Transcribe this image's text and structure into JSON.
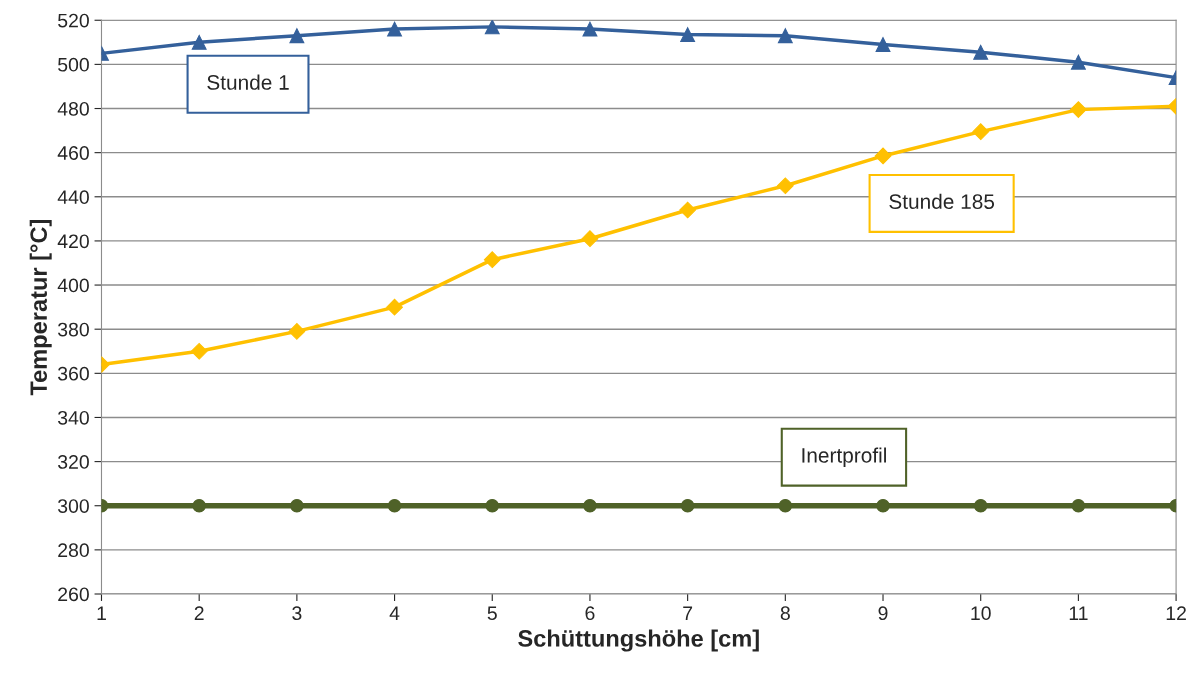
{
  "chart_data": {
    "type": "line",
    "xlabel": "Schüttungshöhe [cm]",
    "ylabel": "Temperatur [°C]",
    "x": [
      1,
      2,
      3,
      4,
      5,
      6,
      7,
      8,
      9,
      10,
      11,
      12
    ],
    "series": [
      {
        "name": "Stunde 1",
        "color": "#34609b",
        "marker": "triangle",
        "values": [
          505,
          510,
          513,
          516,
          517,
          516,
          513.5,
          513,
          509,
          505.5,
          501,
          494
        ]
      },
      {
        "name": "Stunde 185",
        "color": "#ffc000",
        "marker": "diamond",
        "values": [
          364,
          370,
          379,
          390,
          411.5,
          421,
          434,
          445,
          458.5,
          469.5,
          479.5,
          481
        ]
      },
      {
        "name": "Inertprofil",
        "color": "#4f6228",
        "marker": "circle",
        "values": [
          300,
          300,
          300,
          300,
          300,
          300,
          300,
          300,
          300,
          300,
          300,
          300
        ]
      }
    ],
    "xlim": [
      1,
      12
    ],
    "xticks": [
      1,
      2,
      3,
      4,
      5,
      6,
      7,
      8,
      9,
      10,
      11,
      12
    ],
    "ylim": [
      260,
      520
    ],
    "yticks": [
      260,
      280,
      300,
      320,
      340,
      360,
      380,
      400,
      420,
      440,
      460,
      480,
      500,
      520
    ],
    "grid": "y",
    "legend": false,
    "line_style": "solid"
  }
}
